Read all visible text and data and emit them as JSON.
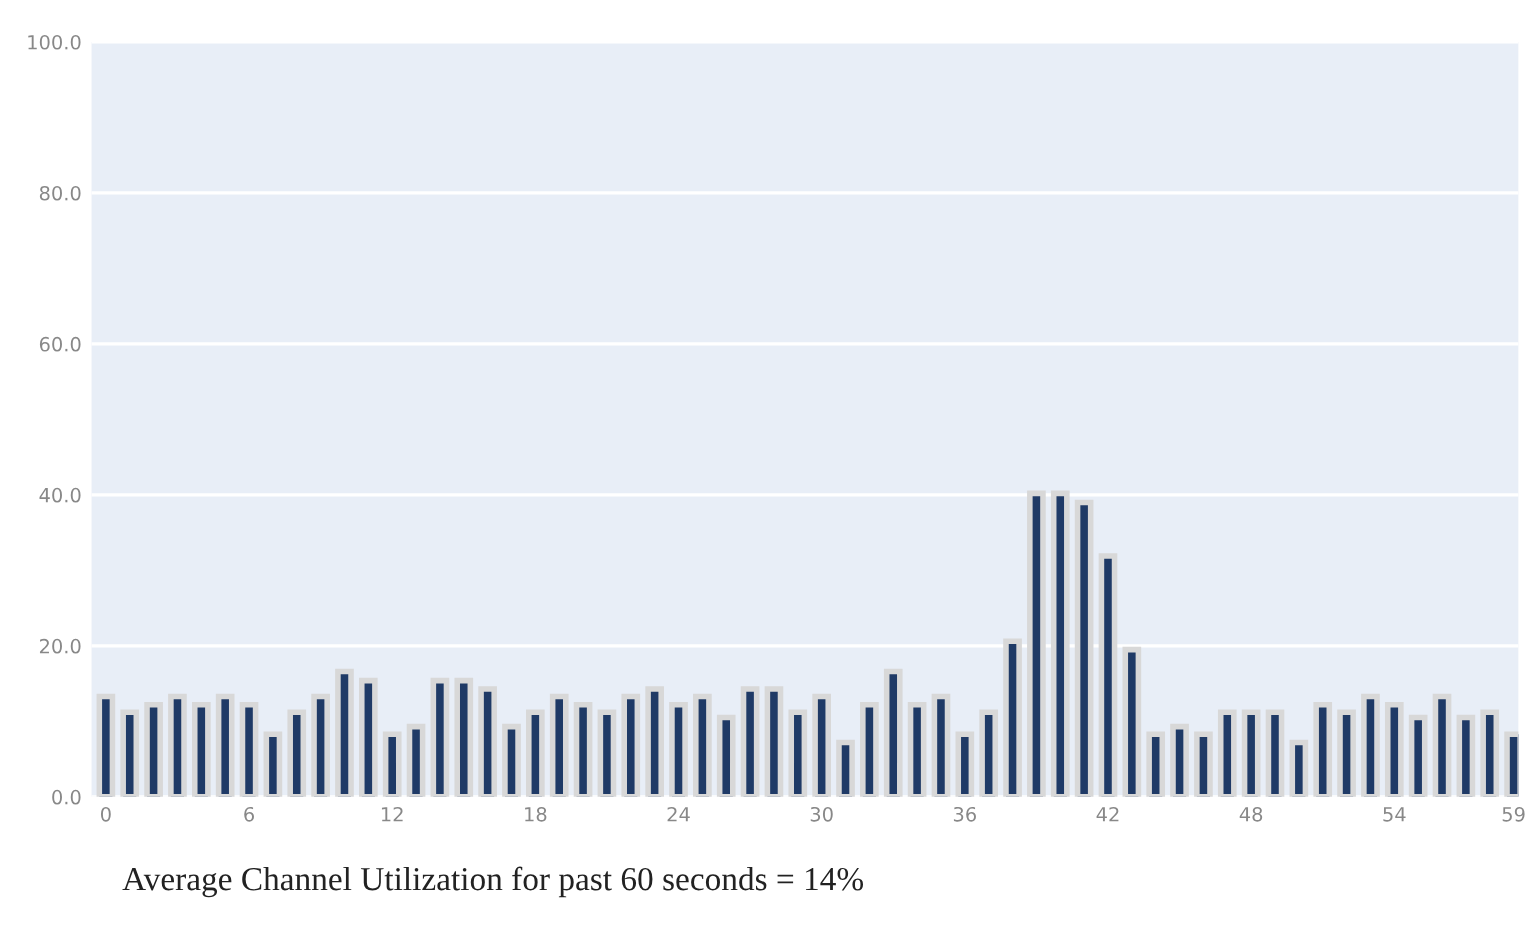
{
  "chart_data": {
    "type": "bar",
    "x": [
      0,
      1,
      2,
      3,
      4,
      5,
      6,
      7,
      8,
      9,
      10,
      11,
      12,
      13,
      14,
      15,
      16,
      17,
      18,
      19,
      20,
      21,
      22,
      23,
      24,
      25,
      26,
      27,
      28,
      29,
      30,
      31,
      32,
      33,
      34,
      35,
      36,
      37,
      38,
      39,
      40,
      41,
      42,
      43,
      44,
      45,
      46,
      47,
      48,
      49,
      50,
      51,
      52,
      53,
      54,
      55,
      56,
      57,
      58,
      59
    ],
    "series": [
      {
        "color": "#1f3a66",
        "values": [
          13.3,
          11.2,
          12.2,
          13.3,
          12.2,
          13.3,
          12.2,
          8.3,
          11.2,
          13.3,
          16.6,
          15.4,
          8.3,
          9.3,
          15.4,
          15.4,
          14.3,
          9.3,
          11.2,
          13.3,
          12.2,
          11.2,
          13.3,
          14.3,
          12.2,
          13.3,
          10.5,
          14.3,
          14.3,
          11.2,
          13.3,
          7.2,
          12.2,
          16.6,
          12.2,
          13.3,
          8.3,
          11.2,
          20.6,
          40.2,
          40.2,
          39.0,
          31.9,
          19.5,
          8.3,
          9.3,
          8.3,
          11.2,
          11.2,
          11.2,
          7.2,
          12.2,
          11.2,
          13.3,
          12.2,
          10.5,
          13.3,
          10.5,
          11.2,
          8.3
        ]
      }
    ],
    "xlim": [
      -0.6,
      59.2
    ],
    "xticks": [
      0,
      6,
      12,
      18,
      24,
      30,
      36,
      42,
      48,
      54,
      59
    ],
    "ylim": [
      0,
      100
    ],
    "yticks": [
      {
        "value": 0,
        "label": "0.0"
      },
      {
        "value": 20,
        "label": "20.0"
      },
      {
        "value": 40,
        "label": "40.0"
      },
      {
        "value": 60,
        "label": "60.0"
      },
      {
        "value": 80,
        "label": "80.0"
      },
      {
        "value": 100,
        "label": "100.0"
      }
    ],
    "grid": "y",
    "annotations": [
      "Average Channel Utilization for past 60 seconds = 14%"
    ]
  }
}
